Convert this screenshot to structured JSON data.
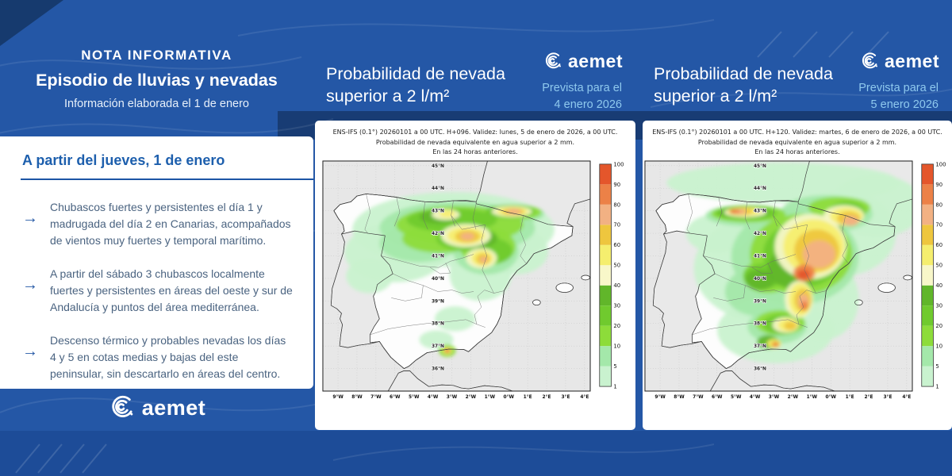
{
  "colors": {
    "background": "#2457a6",
    "header_band": "#183c74",
    "footer_band": "#1d4c98",
    "corner_navy": "#163a6e",
    "light_blue_text": "#8fc9ee",
    "heading_blue": "#1d5fad",
    "body_text": "#4a6380",
    "sea": "#e7e7e7",
    "land_spain": "#fdfdfd"
  },
  "note": {
    "kicker": "NOTA INFORMATIVA",
    "title": "Episodio de lluvias y nevadas",
    "subtitle": "Información elaborada el 1 de enero",
    "section_heading": "A partir del jueves, 1 de enero",
    "arrow_glyph": "→",
    "bullets": [
      "Chubascos fuertes y persistentes el día 1 y madrugada del día 2 en Canarias, acompañados de vientos muy fuertes y temporal marítimo.",
      "A partir del sábado 3 chubascos localmente fuertes y persistentes en áreas del oeste y sur de Andalucía y puntos del área mediterránea.",
      "Descenso térmico y probables nevadas los días 4 y 5 en cotas medias y bajas del este peninsular, sin descartarlo en áreas del centro."
    ],
    "logo_text": "aemet"
  },
  "panels": [
    {
      "title_line1": "Probabilidad de nevada",
      "title_line2": "superior a 2 l/m²",
      "logo_text": "aemet",
      "forecast_label": "Prevista para el",
      "forecast_date": "4 enero 2026",
      "caption_line1": "ENS-IFS (0.1°) 20260101 a 00 UTC. H+096. Validez: lunes, 5 de enero de 2026, a 00 UTC.",
      "caption_line2": "Probabilidad de nevada equivalente en agua superior a 2 mm.",
      "caption_line3": "En las 24 horas anteriores.",
      "field_blobs": [
        [
          0,
          170,
          90,
          130,
          48
        ],
        [
          0,
          95,
          120,
          65,
          38
        ],
        [
          0,
          62,
          150,
          30,
          22
        ],
        [
          0,
          205,
          148,
          40,
          34
        ],
        [
          0,
          172,
          205,
          26,
          16
        ],
        [
          0,
          148,
          232,
          22,
          12
        ],
        [
          0,
          250,
          118,
          42,
          30
        ],
        [
          1,
          175,
          88,
          100,
          34
        ],
        [
          1,
          125,
          108,
          50,
          24
        ],
        [
          1,
          212,
          118,
          42,
          30
        ],
        [
          1,
          247,
          70,
          40,
          12
        ],
        [
          2,
          178,
          84,
          82,
          24
        ],
        [
          2,
          152,
          102,
          48,
          18
        ],
        [
          2,
          214,
          112,
          36,
          24
        ],
        [
          2,
          247,
          68,
          36,
          10
        ],
        [
          2,
          162,
          246,
          11,
          8
        ],
        [
          3,
          168,
          78,
          58,
          15
        ],
        [
          3,
          188,
          102,
          40,
          16
        ],
        [
          3,
          243,
          67,
          32,
          9
        ],
        [
          3,
          222,
          118,
          24,
          16
        ],
        [
          4,
          152,
          74,
          26,
          9
        ],
        [
          4,
          196,
          102,
          30,
          13
        ],
        [
          4,
          244,
          67,
          26,
          7
        ],
        [
          5,
          186,
          98,
          32,
          15
        ],
        [
          5,
          245,
          67,
          26,
          7
        ],
        [
          5,
          160,
          71,
          18,
          7
        ],
        [
          5,
          206,
          127,
          20,
          13
        ],
        [
          6,
          186,
          98,
          24,
          11
        ],
        [
          6,
          246,
          67,
          20,
          5.5
        ],
        [
          6,
          207,
          127,
          14,
          10
        ],
        [
          6,
          162,
          70,
          10,
          4.5
        ],
        [
          6,
          162,
          246,
          6,
          4.5
        ],
        [
          7,
          188,
          99,
          16,
          8
        ],
        [
          7,
          247,
          67,
          14,
          4.5
        ],
        [
          7,
          208,
          128,
          9,
          7
        ],
        [
          8,
          188,
          99,
          9,
          5
        ],
        [
          8,
          248,
          67,
          9,
          3.5
        ],
        [
          8,
          209,
          129,
          5,
          4
        ],
        [
          9,
          162,
          246,
          3.5,
          2.8
        ],
        [
          10,
          162,
          246,
          2,
          1.6
        ]
      ]
    },
    {
      "title_line1": "Probabilidad de nevada",
      "title_line2": "superior a 2 l/m²",
      "logo_text": "aemet",
      "forecast_label": "Prevista para el",
      "forecast_date": "5 enero 2026",
      "caption_line1": "ENS-IFS (0.1°) 20260101 a 00 UTC. H+120. Validez: martes, 6 de enero de 2026, a 00 UTC.",
      "caption_line2": "Probabilidad de nevada equivalente en agua superior a 2 mm.",
      "caption_line3": "En las 24 horas anteriores.",
      "field_blobs": [
        [
          0,
          180,
          30,
          150,
          26
        ],
        [
          0,
          300,
          60,
          60,
          40
        ],
        [
          0,
          255,
          95,
          70,
          55
        ],
        [
          0,
          160,
          140,
          95,
          70
        ],
        [
          0,
          170,
          220,
          75,
          42
        ],
        [
          0,
          232,
          180,
          45,
          52
        ],
        [
          0,
          95,
          95,
          40,
          25
        ],
        [
          1,
          195,
          125,
          82,
          62
        ],
        [
          1,
          235,
          70,
          60,
          24
        ],
        [
          1,
          150,
          170,
          45,
          32
        ],
        [
          1,
          172,
          215,
          38,
          22
        ],
        [
          1,
          135,
          72,
          55,
          14
        ],
        [
          2,
          203,
          122,
          66,
          52
        ],
        [
          2,
          135,
          70,
          48,
          11
        ],
        [
          2,
          160,
          150,
          32,
          22
        ],
        [
          2,
          176,
          210,
          32,
          16
        ],
        [
          2,
          252,
          62,
          40,
          14
        ],
        [
          3,
          206,
          122,
          52,
          42
        ],
        [
          3,
          132,
          69,
          40,
          9
        ],
        [
          3,
          155,
          150,
          26,
          16
        ],
        [
          3,
          178,
          212,
          24,
          13
        ],
        [
          3,
          262,
          68,
          24,
          14
        ],
        [
          4,
          192,
          140,
          32,
          26
        ],
        [
          4,
          130,
          68,
          32,
          7.5
        ],
        [
          4,
          150,
          155,
          19,
          13
        ],
        [
          4,
          180,
          215,
          15,
          9
        ],
        [
          4,
          232,
          95,
          26,
          21
        ],
        [
          4,
          160,
          235,
          14,
          9
        ],
        [
          5,
          215,
          112,
          46,
          42
        ],
        [
          5,
          131,
          68,
          27,
          6.5
        ],
        [
          5,
          183,
          213,
          17,
          10
        ],
        [
          5,
          258,
          72,
          26,
          13
        ],
        [
          5,
          200,
          180,
          18,
          24
        ],
        [
          6,
          219,
          112,
          39,
          35
        ],
        [
          6,
          129,
          67,
          21,
          5.5
        ],
        [
          6,
          186,
          213,
          13,
          8
        ],
        [
          6,
          261,
          73,
          21,
          11
        ],
        [
          6,
          202,
          180,
          15,
          21
        ],
        [
          6,
          168,
          237,
          9,
          6
        ],
        [
          7,
          223,
          117,
          29,
          27
        ],
        [
          7,
          126,
          67,
          15,
          4.5
        ],
        [
          7,
          264,
          76,
          15,
          9
        ],
        [
          7,
          205,
          181,
          11,
          15
        ],
        [
          7,
          189,
          214,
          8,
          5.5
        ],
        [
          7,
          170,
          238,
          6,
          4.5
        ],
        [
          8,
          226,
          122,
          21,
          18
        ],
        [
          8,
          122,
          67,
          10,
          3.5
        ],
        [
          8,
          267,
          79,
          10,
          6.5
        ],
        [
          8,
          206,
          183,
          7,
          10
        ],
        [
          9,
          207,
          146,
          14,
          11
        ],
        [
          9,
          118,
          67,
          6.5,
          2.6
        ],
        [
          9,
          170,
          238,
          3.5,
          2.6
        ],
        [
          9,
          207,
          188,
          4.5,
          6
        ],
        [
          10,
          206,
          148,
          8,
          6
        ],
        [
          10,
          114,
          67,
          3.5,
          1.8
        ]
      ]
    }
  ],
  "map": {
    "lat_labels": [
      "45°N",
      "44°N",
      "43°N",
      "42°N",
      "41°N",
      "40°N",
      "39°N",
      "38°N",
      "37°N",
      "36°N"
    ],
    "lon_labels": [
      "9°W",
      "8°W",
      "7°W",
      "6°W",
      "5°W",
      "4°W",
      "3°W",
      "2°W",
      "1°W",
      "0°W",
      "1°E",
      "2°E",
      "3°E",
      "4°E"
    ],
    "colorbar": {
      "labels": [
        "1",
        "5",
        "10",
        "20",
        "30",
        "40",
        "50",
        "60",
        "70",
        "80",
        "90",
        "100"
      ],
      "colors": [
        "#c9f2cf",
        "#a4e8aa",
        "#8ddc3a",
        "#70ca2e",
        "#61b62a",
        "#f8f7c9",
        "#f5ee6e",
        "#eec63e",
        "#f2b183",
        "#ec8147",
        "#e4562b"
      ]
    }
  }
}
